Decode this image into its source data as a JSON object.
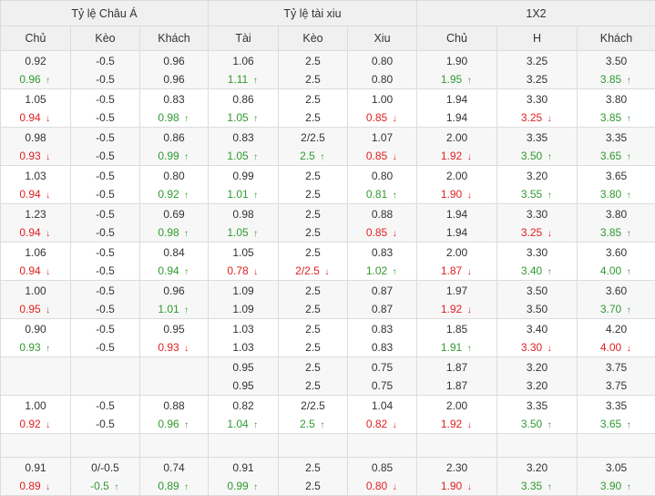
{
  "headers": {
    "groups": [
      "Tỷ lệ Châu Á",
      "Tỷ lệ tài xiu",
      "1X2"
    ],
    "columns": [
      "Chủ",
      "Kèo",
      "Khách",
      "Tài",
      "Kèo",
      "Xiu",
      "Chủ",
      "H",
      "Khách"
    ]
  },
  "rows": [
    {
      "type": "data",
      "cells": [
        [
          {
            "v": "0.92"
          },
          {
            "v": "0.96",
            "d": "up"
          }
        ],
        [
          {
            "v": "-0.5"
          },
          {
            "v": "-0.5"
          }
        ],
        [
          {
            "v": "0.96"
          },
          {
            "v": "0.96"
          }
        ],
        [
          {
            "v": "1.06"
          },
          {
            "v": "1.11",
            "d": "up"
          }
        ],
        [
          {
            "v": "2.5"
          },
          {
            "v": "2.5"
          }
        ],
        [
          {
            "v": "0.80"
          },
          {
            "v": "0.80"
          }
        ],
        [
          {
            "v": "1.90"
          },
          {
            "v": "1.95",
            "d": "up"
          }
        ],
        [
          {
            "v": "3.25"
          },
          {
            "v": "3.25"
          }
        ],
        [
          {
            "v": "3.50"
          },
          {
            "v": "3.85",
            "d": "up"
          }
        ]
      ]
    },
    {
      "type": "data",
      "cells": [
        [
          {
            "v": "1.05"
          },
          {
            "v": "0.94",
            "d": "down"
          }
        ],
        [
          {
            "v": "-0.5"
          },
          {
            "v": "-0.5"
          }
        ],
        [
          {
            "v": "0.83"
          },
          {
            "v": "0.98",
            "d": "up"
          }
        ],
        [
          {
            "v": "0.86"
          },
          {
            "v": "1.05",
            "d": "up"
          }
        ],
        [
          {
            "v": "2.5"
          },
          {
            "v": "2.5"
          }
        ],
        [
          {
            "v": "1.00"
          },
          {
            "v": "0.85",
            "d": "down"
          }
        ],
        [
          {
            "v": "1.94"
          },
          {
            "v": "1.94"
          }
        ],
        [
          {
            "v": "3.30"
          },
          {
            "v": "3.25",
            "d": "down"
          }
        ],
        [
          {
            "v": "3.80"
          },
          {
            "v": "3.85",
            "d": "up"
          }
        ]
      ]
    },
    {
      "type": "data",
      "cells": [
        [
          {
            "v": "0.98"
          },
          {
            "v": "0.93",
            "d": "down"
          }
        ],
        [
          {
            "v": "-0.5"
          },
          {
            "v": "-0.5"
          }
        ],
        [
          {
            "v": "0.86"
          },
          {
            "v": "0.99",
            "d": "up"
          }
        ],
        [
          {
            "v": "0.83"
          },
          {
            "v": "1.05",
            "d": "up"
          }
        ],
        [
          {
            "v": "2/2.5"
          },
          {
            "v": "2.5",
            "d": "up"
          }
        ],
        [
          {
            "v": "1.07"
          },
          {
            "v": "0.85",
            "d": "down"
          }
        ],
        [
          {
            "v": "2.00"
          },
          {
            "v": "1.92",
            "d": "down"
          }
        ],
        [
          {
            "v": "3.35"
          },
          {
            "v": "3.50",
            "d": "up"
          }
        ],
        [
          {
            "v": "3.35"
          },
          {
            "v": "3.65",
            "d": "up"
          }
        ]
      ]
    },
    {
      "type": "data",
      "cells": [
        [
          {
            "v": "1.03"
          },
          {
            "v": "0.94",
            "d": "down"
          }
        ],
        [
          {
            "v": "-0.5"
          },
          {
            "v": "-0.5"
          }
        ],
        [
          {
            "v": "0.80"
          },
          {
            "v": "0.92",
            "d": "up"
          }
        ],
        [
          {
            "v": "0.99"
          },
          {
            "v": "1.01",
            "d": "up"
          }
        ],
        [
          {
            "v": "2.5"
          },
          {
            "v": "2.5"
          }
        ],
        [
          {
            "v": "0.80"
          },
          {
            "v": "0.81",
            "d": "up"
          }
        ],
        [
          {
            "v": "2.00"
          },
          {
            "v": "1.90",
            "d": "down"
          }
        ],
        [
          {
            "v": "3.20"
          },
          {
            "v": "3.55",
            "d": "up"
          }
        ],
        [
          {
            "v": "3.65"
          },
          {
            "v": "3.80",
            "d": "up"
          }
        ]
      ]
    },
    {
      "type": "data",
      "cells": [
        [
          {
            "v": "1.23"
          },
          {
            "v": "0.94",
            "d": "down"
          }
        ],
        [
          {
            "v": "-0.5"
          },
          {
            "v": "-0.5"
          }
        ],
        [
          {
            "v": "0.69"
          },
          {
            "v": "0.98",
            "d": "up"
          }
        ],
        [
          {
            "v": "0.98"
          },
          {
            "v": "1.05",
            "d": "up"
          }
        ],
        [
          {
            "v": "2.5"
          },
          {
            "v": "2.5"
          }
        ],
        [
          {
            "v": "0.88"
          },
          {
            "v": "0.85",
            "d": "down"
          }
        ],
        [
          {
            "v": "1.94"
          },
          {
            "v": "1.94"
          }
        ],
        [
          {
            "v": "3.30"
          },
          {
            "v": "3.25",
            "d": "down"
          }
        ],
        [
          {
            "v": "3.80"
          },
          {
            "v": "3.85",
            "d": "up"
          }
        ]
      ]
    },
    {
      "type": "data",
      "cells": [
        [
          {
            "v": "1.06"
          },
          {
            "v": "0.94",
            "d": "down"
          }
        ],
        [
          {
            "v": "-0.5"
          },
          {
            "v": "-0.5"
          }
        ],
        [
          {
            "v": "0.84"
          },
          {
            "v": "0.94",
            "d": "up"
          }
        ],
        [
          {
            "v": "1.05"
          },
          {
            "v": "0.78",
            "d": "down"
          }
        ],
        [
          {
            "v": "2.5"
          },
          {
            "v": "2/2.5",
            "d": "down"
          }
        ],
        [
          {
            "v": "0.83"
          },
          {
            "v": "1.02",
            "d": "up"
          }
        ],
        [
          {
            "v": "2.00"
          },
          {
            "v": "1.87",
            "d": "down"
          }
        ],
        [
          {
            "v": "3.30"
          },
          {
            "v": "3.40",
            "d": "up"
          }
        ],
        [
          {
            "v": "3.60"
          },
          {
            "v": "4.00",
            "d": "up"
          }
        ]
      ]
    },
    {
      "type": "data",
      "cells": [
        [
          {
            "v": "1.00"
          },
          {
            "v": "0.95",
            "d": "down"
          }
        ],
        [
          {
            "v": "-0.5"
          },
          {
            "v": "-0.5"
          }
        ],
        [
          {
            "v": "0.96"
          },
          {
            "v": "1.01",
            "d": "up"
          }
        ],
        [
          {
            "v": "1.09"
          },
          {
            "v": "1.09"
          }
        ],
        [
          {
            "v": "2.5"
          },
          {
            "v": "2.5"
          }
        ],
        [
          {
            "v": "0.87"
          },
          {
            "v": "0.87"
          }
        ],
        [
          {
            "v": "1.97"
          },
          {
            "v": "1.92",
            "d": "down"
          }
        ],
        [
          {
            "v": "3.50"
          },
          {
            "v": "3.50"
          }
        ],
        [
          {
            "v": "3.60"
          },
          {
            "v": "3.70",
            "d": "up"
          }
        ]
      ]
    },
    {
      "type": "data",
      "cells": [
        [
          {
            "v": "0.90"
          },
          {
            "v": "0.93",
            "d": "up"
          }
        ],
        [
          {
            "v": "-0.5"
          },
          {
            "v": "-0.5"
          }
        ],
        [
          {
            "v": "0.95"
          },
          {
            "v": "0.93",
            "d": "down"
          }
        ],
        [
          {
            "v": "1.03"
          },
          {
            "v": "1.03"
          }
        ],
        [
          {
            "v": "2.5"
          },
          {
            "v": "2.5"
          }
        ],
        [
          {
            "v": "0.83"
          },
          {
            "v": "0.83"
          }
        ],
        [
          {
            "v": "1.85"
          },
          {
            "v": "1.91",
            "d": "up"
          }
        ],
        [
          {
            "v": "3.40"
          },
          {
            "v": "3.30",
            "d": "down"
          }
        ],
        [
          {
            "v": "4.20"
          },
          {
            "v": "4.00",
            "d": "down"
          }
        ]
      ]
    },
    {
      "type": "data",
      "cells": [
        [],
        [],
        [],
        [
          {
            "v": "0.95"
          },
          {
            "v": "0.95"
          }
        ],
        [
          {
            "v": "2.5"
          },
          {
            "v": "2.5"
          }
        ],
        [
          {
            "v": "0.75"
          },
          {
            "v": "0.75"
          }
        ],
        [
          {
            "v": "1.87"
          },
          {
            "v": "1.87"
          }
        ],
        [
          {
            "v": "3.20"
          },
          {
            "v": "3.20"
          }
        ],
        [
          {
            "v": "3.75"
          },
          {
            "v": "3.75"
          }
        ]
      ]
    },
    {
      "type": "data",
      "cells": [
        [
          {
            "v": "1.00"
          },
          {
            "v": "0.92",
            "d": "down"
          }
        ],
        [
          {
            "v": "-0.5"
          },
          {
            "v": "-0.5"
          }
        ],
        [
          {
            "v": "0.88"
          },
          {
            "v": "0.96",
            "d": "up"
          }
        ],
        [
          {
            "v": "0.82"
          },
          {
            "v": "1.04",
            "d": "up"
          }
        ],
        [
          {
            "v": "2/2.5"
          },
          {
            "v": "2.5",
            "d": "up"
          }
        ],
        [
          {
            "v": "1.04"
          },
          {
            "v": "0.82",
            "d": "down"
          }
        ],
        [
          {
            "v": "2.00"
          },
          {
            "v": "1.92",
            "d": "down"
          }
        ],
        [
          {
            "v": "3.35"
          },
          {
            "v": "3.50",
            "d": "up"
          }
        ],
        [
          {
            "v": "3.35"
          },
          {
            "v": "3.65",
            "d": "up"
          }
        ]
      ]
    },
    {
      "type": "spacer"
    },
    {
      "type": "data",
      "cells": [
        [
          {
            "v": "0.91"
          },
          {
            "v": "0.89",
            "d": "down"
          }
        ],
        [
          {
            "v": "0/-0.5"
          },
          {
            "v": "-0.5",
            "d": "up"
          }
        ],
        [
          {
            "v": "0.74"
          },
          {
            "v": "0.89",
            "d": "up"
          }
        ],
        [
          {
            "v": "0.91"
          },
          {
            "v": "0.99",
            "d": "up"
          }
        ],
        [
          {
            "v": "2.5"
          },
          {
            "v": "2.5"
          }
        ],
        [
          {
            "v": "0.85"
          },
          {
            "v": "0.80",
            "d": "down"
          }
        ],
        [
          {
            "v": "2.30"
          },
          {
            "v": "1.90",
            "d": "down"
          }
        ],
        [
          {
            "v": "3.20"
          },
          {
            "v": "3.35",
            "d": "up"
          }
        ],
        [
          {
            "v": "3.05"
          },
          {
            "v": "3.90",
            "d": "up"
          }
        ]
      ]
    }
  ],
  "colors": {
    "up": "#2f9a2f",
    "down": "#e01f1f",
    "header_bg": "#f0f0f0",
    "alt_bg": "#f7f7f7",
    "border": "#dcdcdc"
  },
  "icons": {
    "up": "arrow-up-icon",
    "down": "arrow-down-icon"
  }
}
